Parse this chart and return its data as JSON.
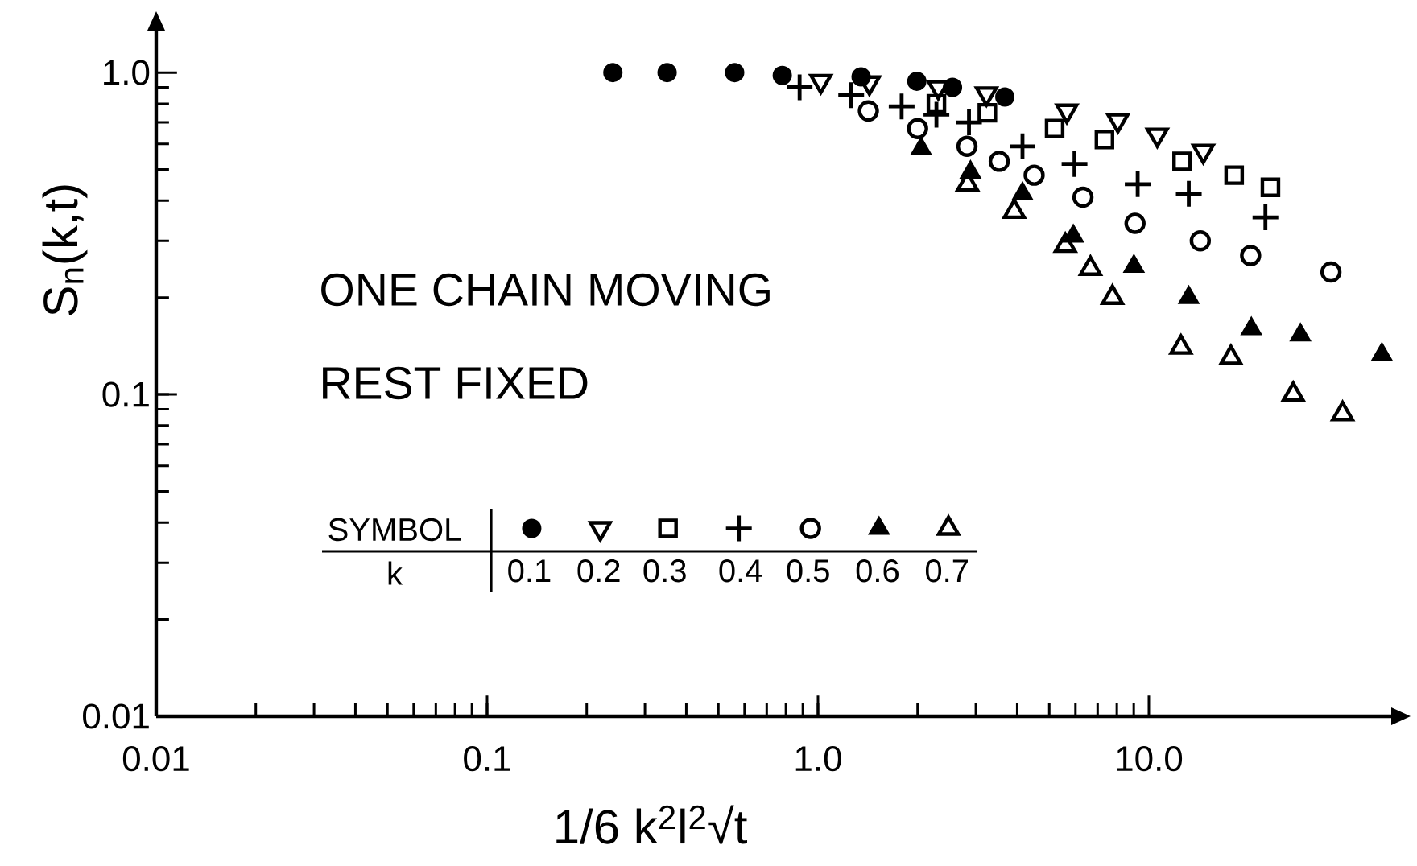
{
  "chart_data": {
    "type": "scatter",
    "xlabel": "1/6 k$^{2}$l$^{2}$√t",
    "ylabel": "S$_{n}$(k,t)",
    "annotations": [
      "ONE CHAIN MOVING",
      "REST FIXED",
      "SYMBOL"
    ],
    "legend_title": "k",
    "legend": "bottom left",
    "log": "xy",
    "xlim": [
      0.01,
      54
    ],
    "ylim": [
      0.01,
      1.35
    ],
    "xticks": [
      0.01,
      0.1,
      {
        "value": 1,
        "label": "1.0"
      },
      {
        "value": 10,
        "label": "10.0"
      }
    ],
    "yticks": [
      0.01,
      0.1,
      {
        "value": 1,
        "label": "1.0"
      }
    ],
    "series": [
      {
        "name": "0.1",
        "color": "#000000",
        "marker": "circle-filled",
        "x": [
          0.24,
          0.35,
          0.56,
          0.78,
          1.35,
          1.99,
          2.55,
          3.67
        ],
        "values": [
          1.0,
          1.0,
          1.0,
          0.98,
          0.97,
          0.94,
          0.9,
          0.84
        ]
      },
      {
        "name": "0.2",
        "color": "#000000",
        "marker": "triangle-down",
        "x": [
          1.02,
          1.43,
          2.31,
          3.23,
          5.65,
          8.06,
          10.6,
          14.6
        ],
        "values": [
          0.94,
          0.93,
          0.9,
          0.86,
          0.76,
          0.71,
          0.64,
          0.57
        ]
      },
      {
        "name": "0.3",
        "color": "#000000",
        "marker": "square",
        "x": [
          2.28,
          3.25,
          5.19,
          7.34,
          12.6,
          18.1,
          23.3
        ],
        "values": [
          0.8,
          0.75,
          0.67,
          0.62,
          0.53,
          0.48,
          0.44
        ]
      },
      {
        "name": "0.4",
        "color": "#000000",
        "marker": "cross",
        "x": [
          0.88,
          1.26,
          1.79,
          2.28,
          2.86,
          4.15,
          5.96,
          9.25,
          13.2,
          22.5
        ],
        "values": [
          0.9,
          0.85,
          0.785,
          0.74,
          0.7,
          0.59,
          0.52,
          0.45,
          0.42,
          0.355
        ]
      },
      {
        "name": "0.5",
        "color": "#000000",
        "marker": "circle",
        "x": [
          1.42,
          2.0,
          2.82,
          3.53,
          4.5,
          6.32,
          9.08,
          14.3,
          20.3,
          35.5
        ],
        "values": [
          0.76,
          0.67,
          0.59,
          0.53,
          0.48,
          0.41,
          0.34,
          0.3,
          0.27,
          0.24
        ]
      },
      {
        "name": "0.6",
        "color": "#000000",
        "marker": "triangle-filled",
        "x": [
          2.05,
          2.89,
          4.15,
          5.91,
          9.01,
          13.2,
          20.4,
          28.7,
          50.6
        ],
        "values": [
          0.58,
          0.49,
          0.42,
          0.31,
          0.25,
          0.2,
          0.16,
          0.153,
          0.133
        ]
      },
      {
        "name": "0.7",
        "color": "#000000",
        "marker": "triangle",
        "x": [
          2.83,
          3.92,
          5.59,
          6.66,
          7.76,
          12.5,
          17.7,
          27.3,
          38.5
        ],
        "values": [
          0.45,
          0.37,
          0.29,
          0.246,
          0.2,
          0.14,
          0.13,
          0.1,
          0.087
        ]
      }
    ]
  }
}
